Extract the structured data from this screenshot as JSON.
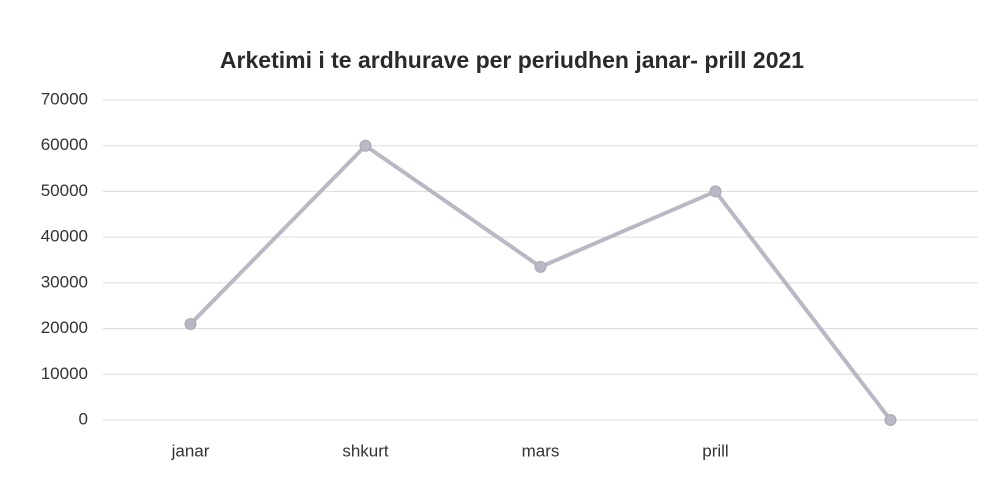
{
  "chart_data": {
    "type": "line",
    "title": "Arketimi i te ardhurave per  periudhen janar- prill  2021",
    "categories": [
      "janar",
      "shkurt",
      "mars",
      "prill",
      null
    ],
    "series": [
      {
        "name": "Arketimi",
        "color": "#b9b9c6",
        "values": [
          21000,
          60000,
          33500,
          50000,
          0
        ]
      }
    ],
    "ylim": [
      0,
      70000
    ],
    "yticks": [
      0,
      10000,
      20000,
      30000,
      40000,
      50000,
      60000,
      70000
    ],
    "grid": true
  }
}
